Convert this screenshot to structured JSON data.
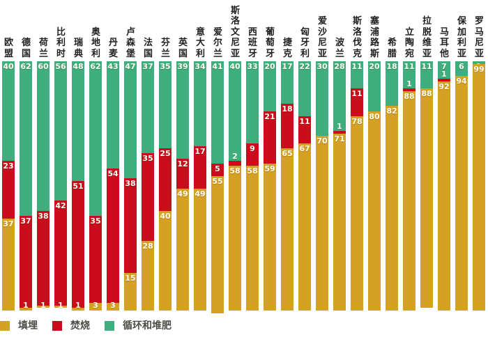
{
  "chart_data": {
    "type": "bar",
    "stacked": true,
    "percent_stacked": true,
    "unit": "%",
    "ylim": [
      0,
      100
    ],
    "grid": false,
    "value_labels": true,
    "legend_position": "bottom-left",
    "categories": [
      "欧盟",
      "德国",
      "荷兰",
      "比利时",
      "瑞典",
      "奥地利",
      "丹麦",
      "卢森堡",
      "法国",
      "芬兰",
      "英国",
      "意大利",
      "爱尔兰",
      "斯洛文尼亚",
      "西班牙",
      "葡萄牙",
      "捷克",
      "匈牙利",
      "爱沙尼亚",
      "波兰",
      "斯洛伐克",
      "塞浦路斯",
      "希腊",
      "立陶宛",
      "拉脱维亚",
      "马耳他",
      "保加利亚",
      "罗马尼亚"
    ],
    "series_order": "top-to-bottom",
    "series": [
      {
        "name": "循环和堆肥",
        "key": "recycling-composting",
        "color": "#3FAE7E",
        "values": [
          40,
          62,
          60,
          56,
          48,
          62,
          43,
          47,
          37,
          35,
          39,
          34,
          41,
          40,
          33,
          20,
          17,
          22,
          30,
          28,
          11,
          20,
          18,
          11,
          11,
          7,
          6,
          1
        ]
      },
      {
        "name": "焚烧",
        "key": "incineration",
        "color": "#C90D1D",
        "values": [
          23,
          37,
          38,
          42,
          51,
          35,
          54,
          38,
          35,
          25,
          12,
          17,
          5,
          2,
          9,
          21,
          18,
          11,
          0,
          1,
          11,
          0,
          0,
          1,
          0,
          1,
          0,
          0
        ]
      },
      {
        "name": "填埋",
        "key": "landfill",
        "color": "#D4A125",
        "values": [
          37,
          1,
          1,
          1,
          1,
          3,
          3,
          15,
          28,
          40,
          49,
          49,
          55,
          58,
          58,
          59,
          65,
          67,
          70,
          71,
          78,
          80,
          82,
          88,
          88,
          92,
          94,
          99
        ]
      }
    ],
    "legend": [
      {
        "label": "填埋",
        "color": "#D4A125"
      },
      {
        "label": "焚烧",
        "color": "#C90D1D"
      },
      {
        "label": "循环和堆肥",
        "color": "#3FAE7E"
      }
    ]
  }
}
